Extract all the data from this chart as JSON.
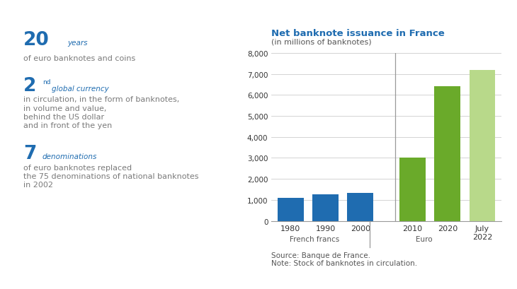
{
  "title": "Net banknote issuance in France",
  "subtitle": "(in millions of banknotes)",
  "categories": [
    "1980",
    "1990",
    "2000",
    "2010",
    "2020",
    "July\n2022"
  ],
  "values": [
    1100,
    1250,
    1350,
    3000,
    6400,
    7200
  ],
  "bar_colors": [
    "#1f6cb0",
    "#1f6cb0",
    "#1f6cb0",
    "#6aaa2a",
    "#6aaa2a",
    "#b8d98a"
  ],
  "ylim": [
    0,
    8000
  ],
  "yticks": [
    0,
    1000,
    2000,
    3000,
    4000,
    5000,
    6000,
    7000,
    8000
  ],
  "title_color": "#1f6cb0",
  "source_text": "Source: Banque de France.\nNote: Stock of banknotes in circulation.",
  "french_francs_label": "French francs",
  "euro_label": "Euro",
  "blue_color": "#1f6cb0",
  "green_color": "#6aaa2a",
  "light_green_color": "#b8d98a",
  "gray_color": "#7a7a7a",
  "x_positions": [
    0,
    1,
    2,
    3.5,
    4.5,
    5.5
  ],
  "bar_width": 0.75,
  "xlim": [
    -0.55,
    6.05
  ]
}
